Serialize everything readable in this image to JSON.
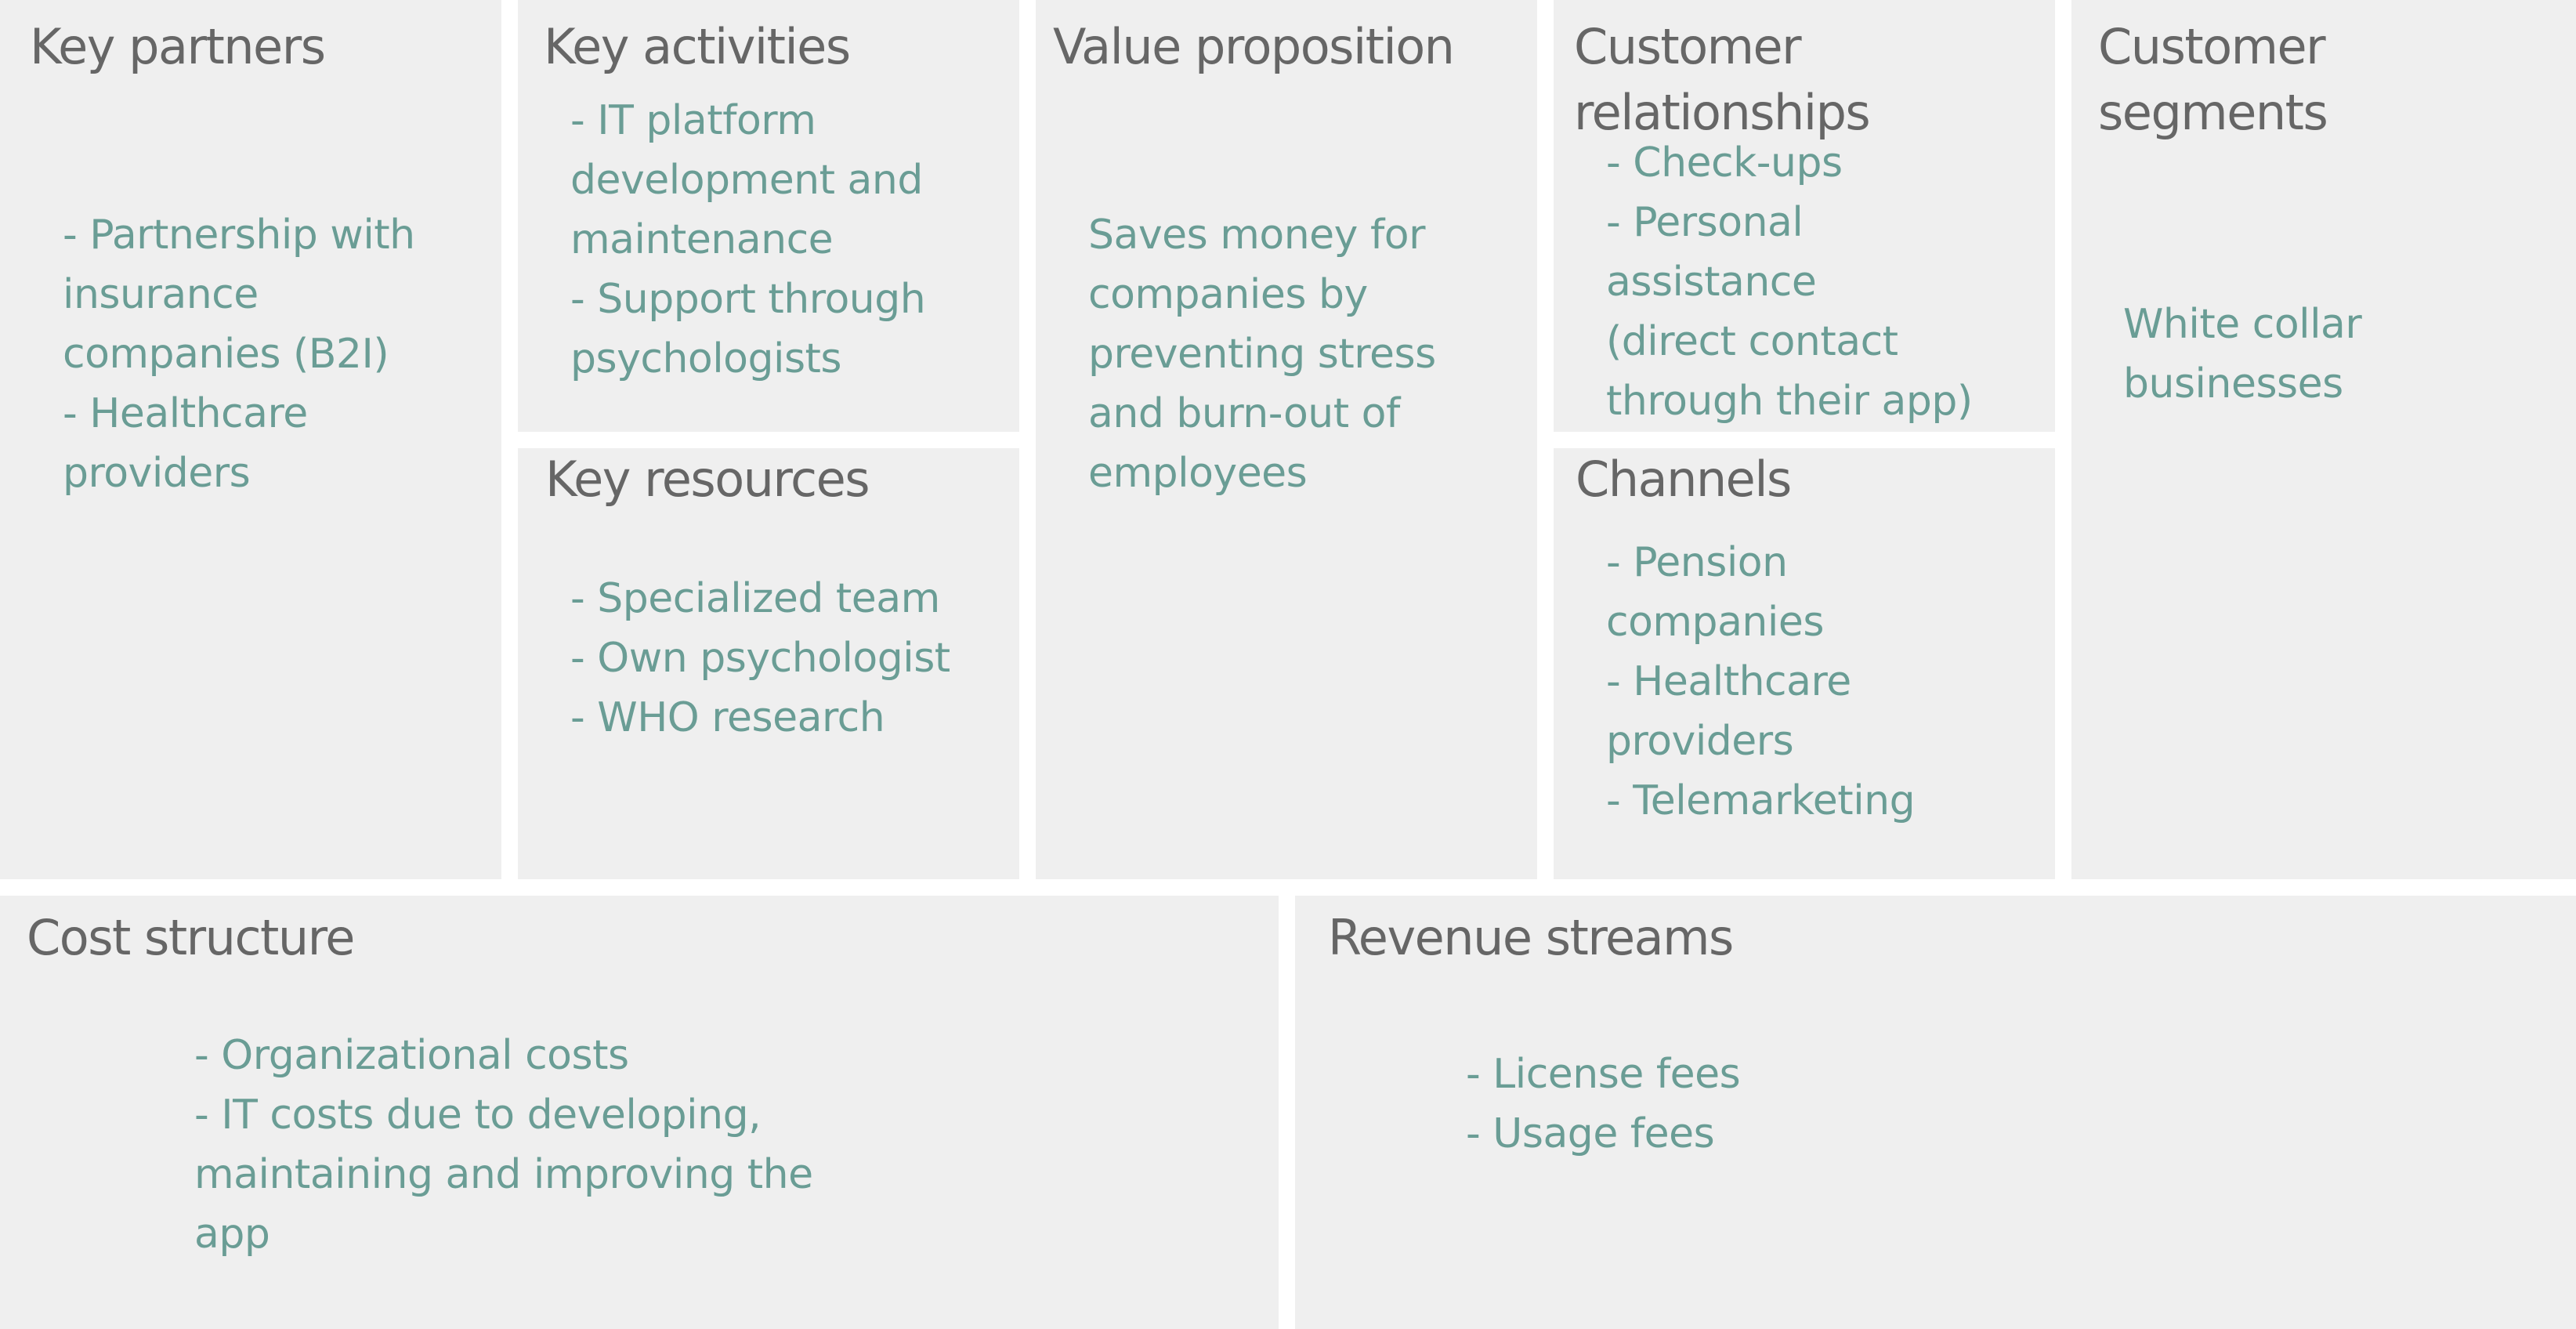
{
  "key_partners": {
    "title": "Key partners",
    "lines": [
      "- Partnership with",
      "insurance",
      "companies (B2I)",
      "- Healthcare",
      "providers"
    ]
  },
  "key_activities": {
    "title": "Key activities",
    "lines": [
      "- IT platform",
      "development and",
      "maintenance",
      "- Support through",
      "psychologists"
    ]
  },
  "key_resources": {
    "title": "Key resources",
    "lines": [
      "- Specialized team",
      "- Own psychologist",
      "- WHO research"
    ]
  },
  "value_proposition": {
    "title": "Value proposition",
    "lines": [
      "Saves money for",
      "companies by",
      "preventing stress",
      "and burn-out of",
      "employees"
    ]
  },
  "customer_relationships": {
    "title": "Customer\nrelationships",
    "lines": [
      "- Check-ups",
      "- Personal",
      "assistance",
      "(direct contact",
      "through their app)"
    ]
  },
  "channels": {
    "title": "Channels",
    "lines": [
      "- Pension",
      "companies",
      "- Healthcare",
      "providers",
      "- Telemarketing"
    ]
  },
  "customer_segments": {
    "title": "Customer\nsegments",
    "lines": [
      "White collar",
      "businesses"
    ]
  },
  "cost_structure": {
    "title": "Cost structure",
    "lines": [
      "- Organizational costs",
      "- IT costs due to developing,",
      "maintaining and improving the",
      "app"
    ]
  },
  "revenue_streams": {
    "title": "Revenue streams",
    "lines": [
      "- License fees",
      "- Usage fees"
    ]
  }
}
